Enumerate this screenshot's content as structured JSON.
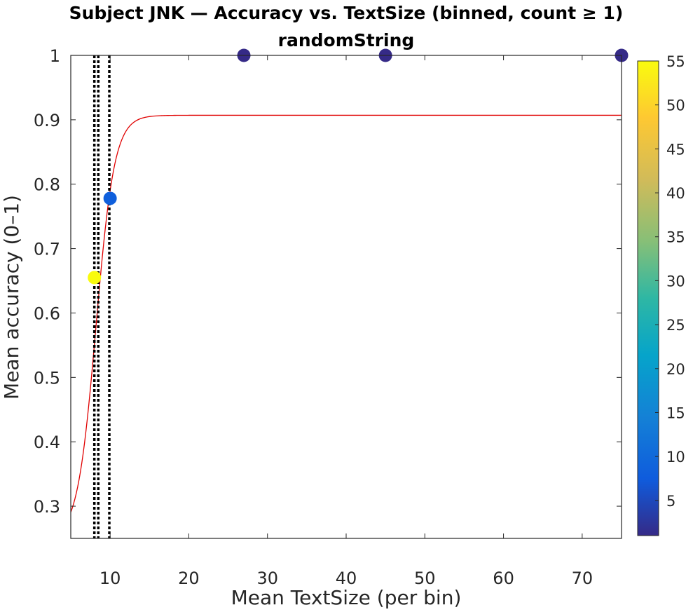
{
  "chart_data": {
    "type": "scatter",
    "title": "Subject JNK — Accuracy vs. TextSize (binned, count ≥ 1)",
    "subtitle": "randomString",
    "xlabel": "Mean TextSize (per bin)",
    "ylabel": "Mean accuracy (0–1)",
    "xlim": [
      5,
      75
    ],
    "ylim": [
      0.25,
      1
    ],
    "xticks": [
      10,
      20,
      30,
      40,
      50,
      60,
      70
    ],
    "yticks": [
      0.3,
      0.4,
      0.5,
      0.6,
      0.7,
      0.8,
      0.9,
      1
    ],
    "grid": false,
    "points": [
      {
        "x": 8,
        "y": 0.655,
        "count": 55
      },
      {
        "x": 10,
        "y": 0.778,
        "count": 8
      },
      {
        "x": 27,
        "y": 1.0,
        "count": 1
      },
      {
        "x": 45,
        "y": 1.0,
        "count": 1
      },
      {
        "x": 75,
        "y": 1.0,
        "count": 1
      }
    ],
    "fit_curve": {
      "color": "#e00000",
      "model": "logistic",
      "lower": 0.25,
      "upper": 0.907,
      "midpoint": 8.2,
      "slope": 0.85
    },
    "vertical_lines": [
      {
        "x": 8.0,
        "style": "dotted",
        "color": "#000000"
      },
      {
        "x": 8.5,
        "style": "dotted",
        "color": "#000000"
      },
      {
        "x": 9.9,
        "style": "dotted",
        "color": "#000000"
      }
    ],
    "colorbar": {
      "min": 1,
      "max": 55,
      "ticks": [
        5,
        10,
        15,
        20,
        25,
        30,
        35,
        40,
        45,
        50,
        55
      ],
      "colormap": "parula"
    }
  }
}
